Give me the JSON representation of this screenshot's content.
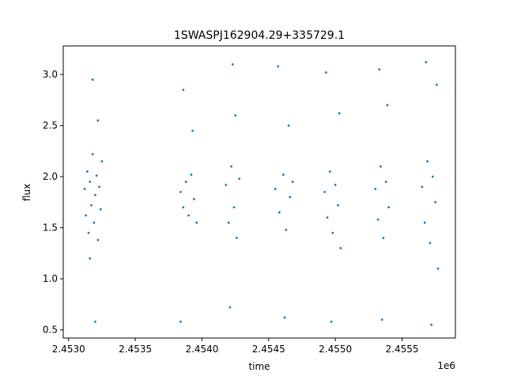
{
  "chart_data": {
    "type": "scatter",
    "title": "1SWASPJ162904.29+335729.1",
    "xlabel": "time",
    "ylabel": "flux",
    "x_offset_label": "1e6",
    "xlim": [
      2.45296,
      2.4559
    ],
    "ylim": [
      0.42,
      3.28
    ],
    "xticks": [
      2.453,
      2.4535,
      2.454,
      2.4545,
      2.455,
      2.4555
    ],
    "xtick_labels": [
      "2.4530",
      "2.4535",
      "2.4540",
      "2.4545",
      "2.4550",
      "2.4555"
    ],
    "yticks": [
      0.5,
      1.0,
      1.5,
      2.0,
      2.5,
      3.0
    ],
    "ytick_labels": [
      "0.5",
      "1.0",
      "1.5",
      "2.0",
      "2.5",
      "3.0"
    ],
    "grid": false,
    "point_color": "#1f77b4",
    "series": [
      {
        "points": [
          [
            2.45312,
            1.88
          ],
          [
            2.45313,
            1.62
          ],
          [
            2.45314,
            2.05
          ],
          [
            2.45315,
            1.45
          ],
          [
            2.45316,
            1.95
          ],
          [
            2.45317,
            1.72
          ],
          [
            2.45318,
            2.22
          ],
          [
            2.45319,
            1.55
          ],
          [
            2.4532,
            1.82
          ],
          [
            2.45321,
            2.01
          ],
          [
            2.45322,
            1.38
          ],
          [
            2.45323,
            1.9
          ],
          [
            2.45324,
            1.68
          ],
          [
            2.45325,
            2.15
          ],
          [
            2.45318,
            2.95
          ],
          [
            2.4532,
            0.58
          ],
          [
            2.45316,
            1.2
          ],
          [
            2.45322,
            2.55
          ],
          [
            2.45384,
            1.85
          ],
          [
            2.45386,
            1.7
          ],
          [
            2.45388,
            1.95
          ],
          [
            2.4539,
            1.62
          ],
          [
            2.45392,
            2.02
          ],
          [
            2.45394,
            1.78
          ],
          [
            2.45396,
            1.55
          ],
          [
            2.45386,
            2.85
          ],
          [
            2.45384,
            0.58
          ],
          [
            2.45393,
            2.45
          ],
          [
            2.45418,
            1.92
          ],
          [
            2.4542,
            1.55
          ],
          [
            2.45422,
            2.1
          ],
          [
            2.45424,
            1.7
          ],
          [
            2.45426,
            1.4
          ],
          [
            2.45428,
            1.98
          ],
          [
            2.45423,
            3.1
          ],
          [
            2.45421,
            0.72
          ],
          [
            2.45425,
            2.6
          ],
          [
            2.45455,
            1.88
          ],
          [
            2.45458,
            1.65
          ],
          [
            2.45461,
            2.02
          ],
          [
            2.45463,
            1.48
          ],
          [
            2.45466,
            1.8
          ],
          [
            2.45468,
            1.95
          ],
          [
            2.45457,
            3.08
          ],
          [
            2.45462,
            0.62
          ],
          [
            2.45465,
            2.5
          ],
          [
            2.45492,
            1.85
          ],
          [
            2.45494,
            1.6
          ],
          [
            2.45496,
            2.05
          ],
          [
            2.45498,
            1.45
          ],
          [
            2.455,
            1.92
          ],
          [
            2.45502,
            1.72
          ],
          [
            2.45504,
            1.3
          ],
          [
            2.45493,
            3.02
          ],
          [
            2.45497,
            0.58
          ],
          [
            2.45503,
            2.62
          ],
          [
            2.4553,
            1.88
          ],
          [
            2.45532,
            1.58
          ],
          [
            2.45534,
            2.1
          ],
          [
            2.45536,
            1.4
          ],
          [
            2.45538,
            1.95
          ],
          [
            2.4554,
            1.7
          ],
          [
            2.45533,
            3.05
          ],
          [
            2.45535,
            0.6
          ],
          [
            2.45539,
            2.7
          ],
          [
            2.45565,
            1.9
          ],
          [
            2.45567,
            1.55
          ],
          [
            2.45569,
            2.15
          ],
          [
            2.45571,
            1.35
          ],
          [
            2.45573,
            2.0
          ],
          [
            2.45575,
            1.75
          ],
          [
            2.45577,
            1.1
          ],
          [
            2.45568,
            3.12
          ],
          [
            2.45572,
            0.55
          ],
          [
            2.45576,
            2.9
          ]
        ]
      }
    ]
  }
}
